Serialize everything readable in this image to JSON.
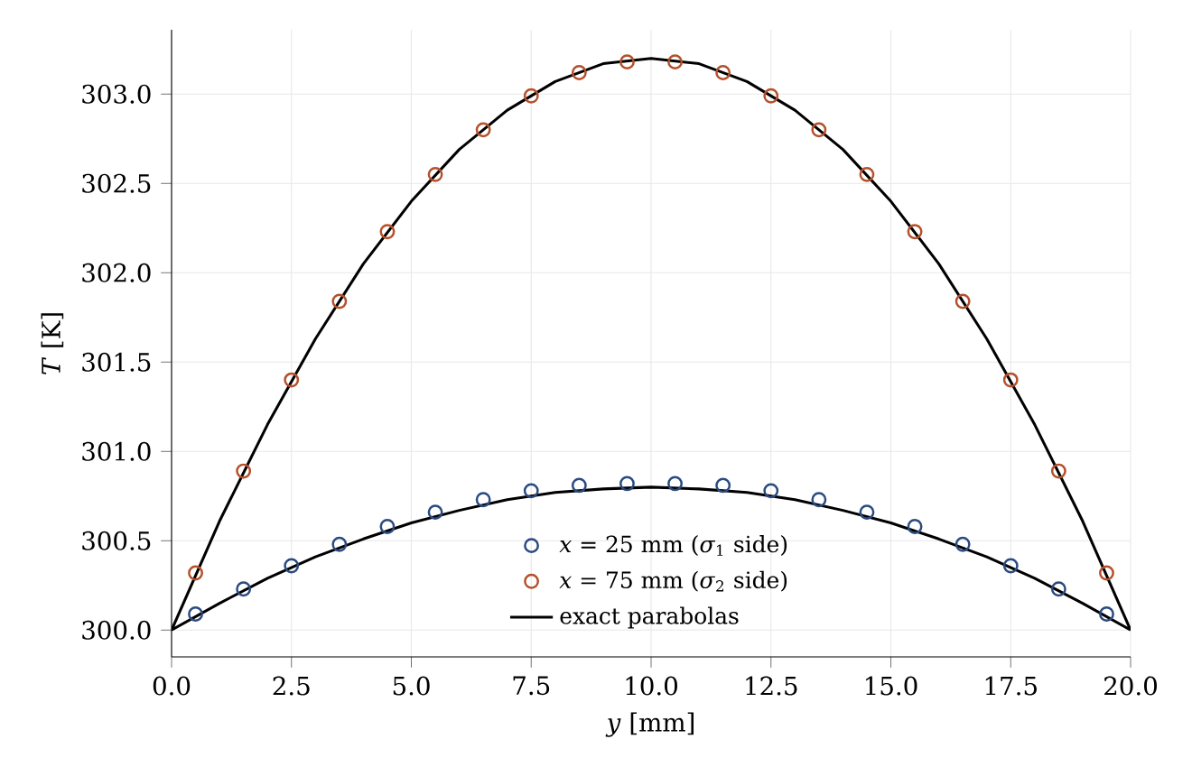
{
  "chart_data": {
    "type": "scatter",
    "xlabel": "*y* [mm]",
    "ylabel": "*T* [K]",
    "x": [
      0.5,
      1.5,
      2.5,
      3.5,
      4.5,
      5.5,
      6.5,
      7.5,
      8.5,
      9.5,
      10.5,
      11.5,
      12.5,
      13.5,
      14.5,
      15.5,
      16.5,
      17.5,
      18.5,
      19.5
    ],
    "series": [
      {
        "name": "*x* = 25 mm (*σ*$_{1}$ side)",
        "color": "#2b4a80",
        "values": [
          300.09,
          300.23,
          300.36,
          300.48,
          300.58,
          300.66,
          300.73,
          300.78,
          300.81,
          300.82,
          300.82,
          300.81,
          300.78,
          300.73,
          300.66,
          300.58,
          300.48,
          300.36,
          300.23,
          300.09
        ]
      },
      {
        "name": "*x* = 75 mm (*σ*$_{2}$ side)",
        "color": "#b5502b",
        "values": [
          300.32,
          300.89,
          301.4,
          301.84,
          302.23,
          302.55,
          302.8,
          302.99,
          303.12,
          303.18,
          303.18,
          303.12,
          302.99,
          302.8,
          302.55,
          302.23,
          301.84,
          301.4,
          300.89,
          300.32
        ]
      },
      {
        "name": "exact parabolas",
        "type": "line",
        "marker": "none",
        "color": "#000000",
        "x": [
          0,
          1,
          2,
          3,
          4,
          5,
          6,
          7,
          8,
          9,
          10,
          11,
          12,
          13,
          14,
          15,
          16,
          17,
          18,
          19,
          20,
          null,
          0,
          1,
          2,
          3,
          4,
          5,
          6,
          7,
          8,
          9,
          10,
          11,
          12,
          13,
          14,
          15,
          16,
          17,
          18,
          19,
          20
        ],
        "values": [
          300.0,
          300.61,
          301.15,
          301.63,
          302.05,
          302.4,
          302.69,
          302.91,
          303.07,
          303.17,
          303.2,
          303.17,
          303.07,
          302.91,
          302.69,
          302.4,
          302.05,
          301.63,
          301.15,
          300.61,
          300.0,
          null,
          300.0,
          300.15,
          300.29,
          300.41,
          300.51,
          300.6,
          300.67,
          300.73,
          300.77,
          300.79,
          300.8,
          300.79,
          300.77,
          300.73,
          300.67,
          300.6,
          300.51,
          300.41,
          300.29,
          300.15,
          300.0
        ]
      }
    ],
    "xlim": [
      0,
      20
    ],
    "ylim": [
      299.85,
      303.36
    ],
    "xticks": [
      {
        "value": 0,
        "label": "0.0"
      },
      2.5,
      {
        "value": 5,
        "label": "5.0"
      },
      7.5,
      {
        "value": 10,
        "label": "10.0"
      },
      12.5,
      {
        "value": 15,
        "label": "15.0"
      },
      17.5,
      {
        "value": 20,
        "label": "20.0"
      }
    ],
    "yticks": [
      {
        "value": 300,
        "label": "300.0"
      },
      300.5,
      {
        "value": 301,
        "label": "301.0"
      },
      301.5,
      {
        "value": 302,
        "label": "302.0"
      },
      302.5,
      {
        "value": 303,
        "label": "303.0"
      }
    ],
    "grid": true,
    "legend": "bottom",
    "marker": "circle"
  }
}
